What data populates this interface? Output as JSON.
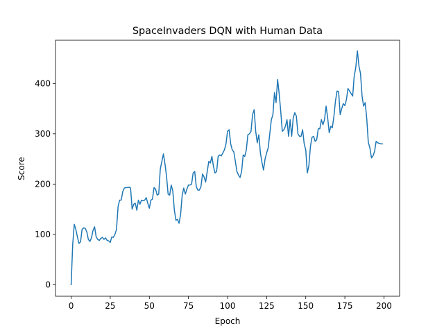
{
  "chart_data": {
    "type": "line",
    "title": "SpaceInvaders DQN with Human Data",
    "xlabel": "Epoch",
    "ylabel": "Score",
    "xlim": [
      -10,
      210
    ],
    "ylim": [
      -23,
      486
    ],
    "xticks": [
      0,
      25,
      50,
      75,
      100,
      125,
      150,
      175,
      200
    ],
    "yticks": [
      0,
      100,
      200,
      300,
      400
    ],
    "grid": false,
    "legend": "none",
    "series": [
      {
        "color": "#1f77b4",
        "x": [
          0,
          1,
          2,
          3,
          4,
          5,
          6,
          7,
          8,
          9,
          10,
          11,
          12,
          13,
          14,
          15,
          16,
          17,
          18,
          19,
          20,
          21,
          22,
          23,
          24,
          25,
          26,
          27,
          28,
          29,
          30,
          31,
          32,
          33,
          34,
          35,
          36,
          37,
          38,
          39,
          40,
          41,
          42,
          43,
          44,
          45,
          46,
          47,
          48,
          49,
          50,
          51,
          52,
          53,
          54,
          55,
          56,
          57,
          58,
          59,
          60,
          61,
          62,
          63,
          64,
          65,
          66,
          67,
          68,
          69,
          70,
          71,
          72,
          73,
          74,
          75,
          76,
          77,
          78,
          79,
          80,
          81,
          82,
          83,
          84,
          85,
          86,
          87,
          88,
          89,
          90,
          91,
          92,
          93,
          94,
          95,
          96,
          97,
          98,
          99,
          100,
          101,
          102,
          103,
          104,
          105,
          106,
          107,
          108,
          109,
          110,
          111,
          112,
          113,
          114,
          115,
          116,
          117,
          118,
          119,
          120,
          121,
          122,
          123,
          124,
          125,
          126,
          127,
          128,
          129,
          130,
          131,
          132,
          133,
          134,
          135,
          136,
          137,
          138,
          139,
          140,
          141,
          142,
          143,
          144,
          145,
          146,
          147,
          148,
          149,
          150,
          151,
          152,
          153,
          154,
          155,
          156,
          157,
          158,
          159,
          160,
          161,
          162,
          163,
          164,
          165,
          166,
          167,
          168,
          169,
          170,
          171,
          172,
          173,
          174,
          175,
          176,
          177,
          178,
          179,
          180,
          181,
          182,
          183,
          184,
          185,
          186,
          187,
          188,
          189,
          190,
          191,
          192,
          193,
          194,
          195,
          196,
          197,
          198,
          199
        ],
        "values": [
          0,
          80,
          120,
          110,
          95,
          82,
          85,
          110,
          113,
          112,
          105,
          90,
          86,
          93,
          108,
          115,
          95,
          90,
          88,
          92,
          94,
          90,
          93,
          88,
          87,
          84,
          95,
          94,
          100,
          110,
          155,
          168,
          168,
          185,
          192,
          193,
          193,
          194,
          192,
          150,
          160,
          162,
          148,
          168,
          160,
          168,
          167,
          168,
          173,
          162,
          152,
          168,
          170,
          193,
          190,
          178,
          180,
          230,
          245,
          260,
          240,
          215,
          180,
          178,
          198,
          186,
          148,
          128,
          130,
          122,
          140,
          178,
          192,
          180,
          190,
          198,
          198,
          200,
          222,
          225,
          195,
          188,
          188,
          195,
          220,
          214,
          204,
          225,
          245,
          242,
          255,
          235,
          222,
          225,
          255,
          258,
          256,
          262,
          268,
          280,
          305,
          308,
          280,
          268,
          264,
          245,
          225,
          218,
          213,
          225,
          258,
          255,
          268,
          298,
          300,
          305,
          338,
          348,
          305,
          282,
          298,
          262,
          243,
          228,
          250,
          262,
          272,
          300,
          328,
          338,
          382,
          362,
          408,
          380,
          345,
          305,
          308,
          315,
          328,
          295,
          328,
          295,
          332,
          342,
          335,
          300,
          295,
          295,
          308,
          280,
          268,
          222,
          237,
          275,
          293,
          295,
          285,
          288,
          310,
          310,
          328,
          318,
          328,
          355,
          332,
          302,
          315,
          312,
          335,
          365,
          385,
          384,
          338,
          350,
          360,
          356,
          368,
          390,
          385,
          380,
          375,
          415,
          432,
          465,
          435,
          420,
          375,
          355,
          362,
          330,
          283,
          272,
          252,
          256,
          265,
          285,
          282,
          281,
          280,
          280
        ]
      }
    ]
  }
}
